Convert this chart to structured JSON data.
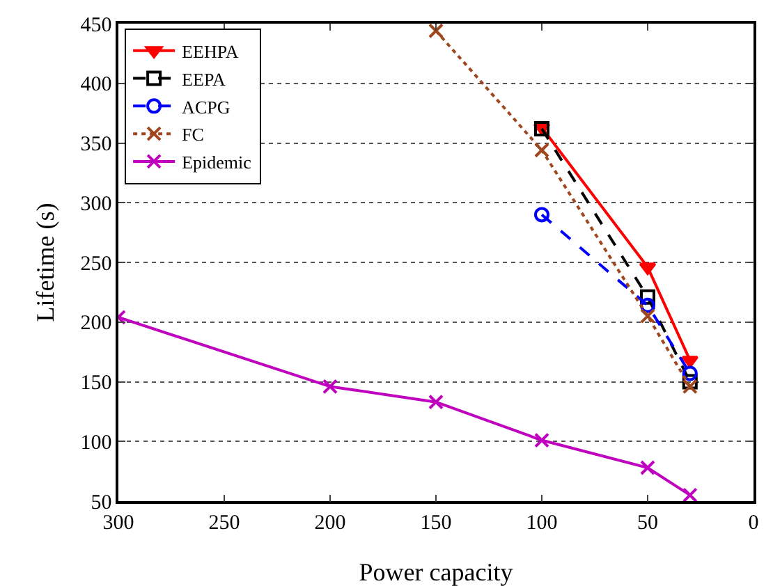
{
  "chart_data": {
    "type": "line",
    "xlabel": "Power capacity",
    "ylabel": "Lifetime (s)",
    "xlim": [
      300,
      0
    ],
    "xticks": [
      300,
      250,
      200,
      150,
      100,
      50,
      0
    ],
    "ylim": [
      50,
      450
    ],
    "yticks": [
      50,
      100,
      150,
      200,
      250,
      300,
      350,
      400,
      450
    ],
    "grid": "y",
    "legend": "top left",
    "series": [
      {
        "name": "EEHPA",
        "color": "#ff0000",
        "marker": "triangle",
        "line_style": "solid",
        "x": [
          100,
          50,
          30
        ],
        "values": [
          363,
          246,
          168
        ]
      },
      {
        "name": "EEPA",
        "color": "#000000",
        "marker": "square",
        "line_style": "dashed",
        "x": [
          100,
          50,
          30
        ],
        "values": [
          362,
          221,
          150
        ]
      },
      {
        "name": "ACPG",
        "color": "#0000ff",
        "marker": "circle",
        "line_style": "dashed",
        "x": [
          100,
          50,
          30
        ],
        "values": [
          290,
          214,
          157
        ]
      },
      {
        "name": "FC",
        "color": "#a0461e",
        "marker": "cross",
        "line_style": "dotted",
        "x": [
          150,
          100,
          50,
          30
        ],
        "values": [
          444,
          344,
          205,
          146
        ]
      },
      {
        "name": "Epidemic",
        "color": "#bf00bf",
        "marker": "cross",
        "line_style": "solid",
        "x": [
          300,
          200,
          150,
          100,
          50,
          30
        ],
        "values": [
          204,
          146,
          133,
          101,
          78,
          55
        ]
      }
    ]
  }
}
